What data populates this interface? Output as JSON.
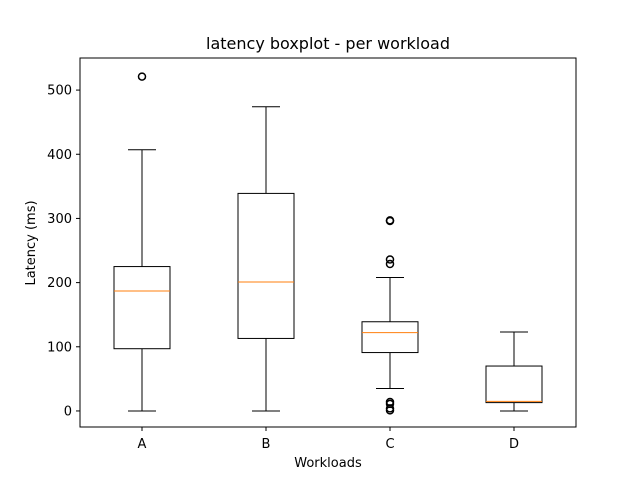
{
  "chart_data": {
    "type": "boxplot",
    "title": "latency boxplot - per workload",
    "xlabel": "Workloads",
    "ylabel": "Latency (ms)",
    "ylim": [
      -25,
      550
    ],
    "yticks": [
      0,
      100,
      200,
      300,
      400,
      500
    ],
    "grid": false,
    "categories": [
      "A",
      "B",
      "C",
      "D"
    ],
    "boxes": [
      {
        "category": "A",
        "whislo": 0,
        "q1": 97,
        "med": 187,
        "q3": 225,
        "whishi": 407,
        "fliers": [
          521
        ]
      },
      {
        "category": "B",
        "whislo": 0,
        "q1": 113,
        "med": 201,
        "q3": 339,
        "whishi": 474,
        "fliers": []
      },
      {
        "category": "C",
        "whislo": 35,
        "q1": 91,
        "med": 122,
        "q3": 139,
        "whishi": 208,
        "fliers": [
          297,
          296,
          236,
          229,
          14,
          11,
          4,
          1
        ]
      },
      {
        "category": "D",
        "whislo": 0,
        "q1": 13,
        "med": 15,
        "q3": 70,
        "whishi": 123,
        "fliers": []
      }
    ],
    "colors": {
      "box": "#000000",
      "median": "#ff7f0e",
      "flier": "#000000"
    }
  }
}
